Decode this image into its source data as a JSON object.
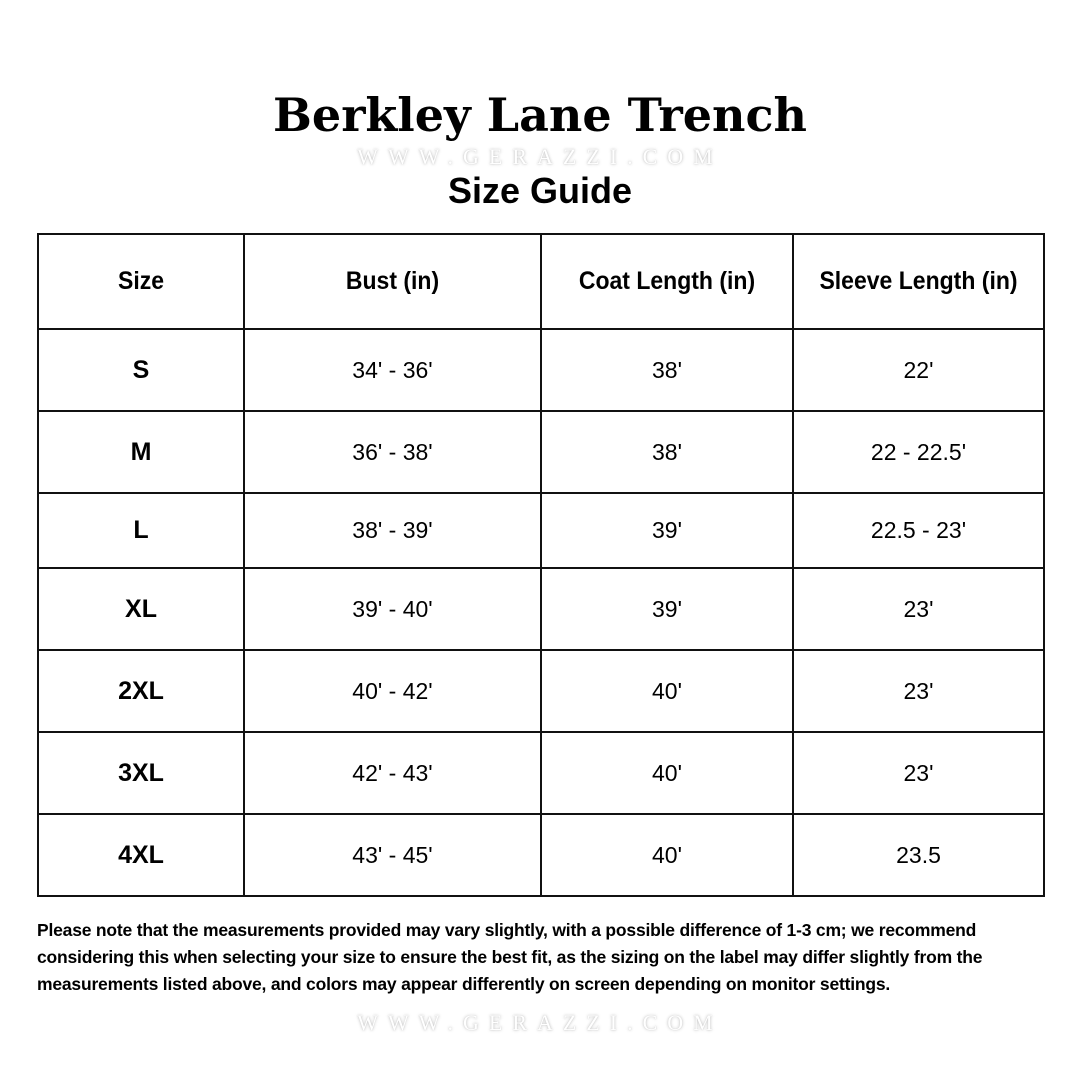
{
  "title": "Berkley Lane Trench",
  "subtitle": "Size Guide",
  "watermark": "WWW.GERAZZI.COM",
  "table": {
    "headers": [
      "Size",
      "Bust (in)",
      "Coat Length (in)",
      "Sleeve Length (in)"
    ],
    "rows": [
      [
        "S",
        "34' - 36'",
        "38'",
        "22'"
      ],
      [
        "M",
        "36' - 38'",
        "38'",
        "22 - 22.5'"
      ],
      [
        "L",
        "38' - 39'",
        "39'",
        "22.5 - 23'"
      ],
      [
        "XL",
        "39' - 40'",
        "39'",
        "23'"
      ],
      [
        "2XL",
        "40' - 42'",
        "40'",
        "23'"
      ],
      [
        "3XL",
        "42' - 43'",
        "40'",
        "23'"
      ],
      [
        "4XL",
        "43' - 45'",
        "40'",
        "23.5"
      ]
    ]
  },
  "note": "Please note that the measurements provided may vary slightly, with a possible difference of 1-3 cm; we recommend considering this when selecting your size to ensure the best fit, as the sizing on the label may differ slightly from the measurements listed above, and colors may appear differently on screen depending on monitor settings."
}
